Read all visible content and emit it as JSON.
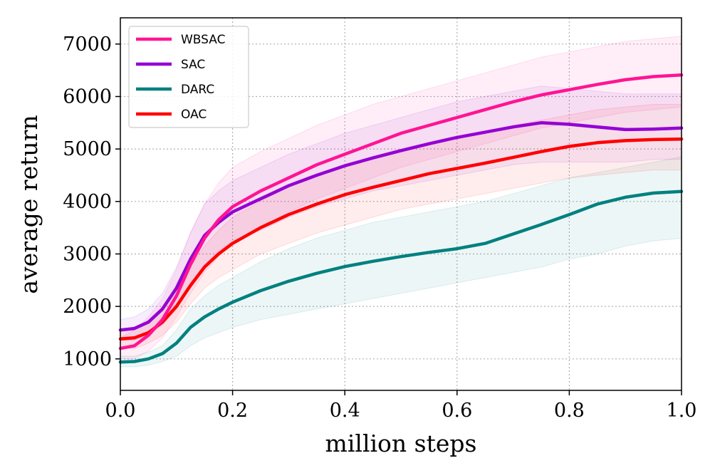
{
  "chart_data": {
    "type": "line",
    "title": "",
    "xlabel": "million steps",
    "ylabel": "average return",
    "xlim": [
      0.0,
      1.0
    ],
    "ylim": [
      400,
      7500
    ],
    "x_ticks": [
      "0.0",
      "0.2",
      "0.4",
      "0.6",
      "0.8",
      "1.0"
    ],
    "y_ticks": [
      "1000",
      "2000",
      "3000",
      "4000",
      "5000",
      "6000",
      "7000"
    ],
    "grid": true,
    "legend_position": "top-left",
    "x": [
      0.0,
      0.025,
      0.05,
      0.075,
      0.1,
      0.125,
      0.15,
      0.175,
      0.2,
      0.25,
      0.3,
      0.35,
      0.4,
      0.45,
      0.5,
      0.55,
      0.6,
      0.65,
      0.7,
      0.75,
      0.8,
      0.85,
      0.9,
      0.95,
      1.0
    ],
    "series": [
      {
        "name": "WBSAC",
        "color": "#ff1493",
        "values": [
          1200,
          1250,
          1450,
          1750,
          2200,
          2800,
          3300,
          3650,
          3900,
          4200,
          4450,
          4700,
          4900,
          5100,
          5300,
          5450,
          5600,
          5750,
          5900,
          6030,
          6130,
          6230,
          6320,
          6380,
          6410
        ],
        "lower": [
          1000,
          1000,
          1150,
          1400,
          1800,
          2250,
          2650,
          2950,
          3200,
          3500,
          3800,
          4050,
          4250,
          4450,
          4650,
          4800,
          4950,
          5100,
          5250,
          5400,
          5500,
          5600,
          5700,
          5750,
          5800
        ],
        "upper": [
          1400,
          1550,
          1800,
          2150,
          2700,
          3400,
          3950,
          4350,
          4650,
          4950,
          5200,
          5450,
          5650,
          5850,
          6000,
          6150,
          6300,
          6450,
          6600,
          6750,
          6850,
          6950,
          7050,
          7100,
          7150
        ]
      },
      {
        "name": "SAC",
        "color": "#9400d3",
        "values": [
          1550,
          1580,
          1700,
          1950,
          2350,
          2900,
          3350,
          3600,
          3800,
          4050,
          4300,
          4500,
          4680,
          4830,
          4970,
          5100,
          5220,
          5320,
          5420,
          5500,
          5470,
          5420,
          5370,
          5380,
          5400
        ],
        "lower": [
          1350,
          1350,
          1450,
          1650,
          1950,
          2400,
          2800,
          3050,
          3250,
          3450,
          3700,
          3900,
          4050,
          4200,
          4300,
          4400,
          4500,
          4600,
          4700,
          4750,
          4750,
          4750,
          4750,
          4800,
          4800
        ],
        "upper": [
          1750,
          1800,
          1950,
          2250,
          2750,
          3400,
          3950,
          4200,
          4400,
          4650,
          4900,
          5100,
          5300,
          5450,
          5600,
          5750,
          5900,
          6000,
          6100,
          6200,
          6150,
          6100,
          6050,
          6050,
          6050
        ]
      },
      {
        "name": "DARC",
        "color": "#008080",
        "values": [
          940,
          950,
          1000,
          1100,
          1300,
          1600,
          1800,
          1950,
          2080,
          2300,
          2480,
          2630,
          2760,
          2860,
          2950,
          3030,
          3100,
          3200,
          3380,
          3560,
          3750,
          3950,
          4080,
          4160,
          4190
        ],
        "lower": [
          850,
          850,
          880,
          950,
          1050,
          1250,
          1400,
          1500,
          1600,
          1750,
          1850,
          1950,
          2050,
          2150,
          2250,
          2350,
          2450,
          2550,
          2650,
          2750,
          2900,
          3000,
          3150,
          3250,
          3300
        ],
        "upper": [
          1050,
          1050,
          1130,
          1250,
          1550,
          1950,
          2200,
          2400,
          2550,
          2850,
          3100,
          3300,
          3450,
          3600,
          3700,
          3800,
          3900,
          4000,
          4150,
          4300,
          4450,
          4550,
          4650,
          4750,
          4850
        ]
      },
      {
        "name": "OAC",
        "color": "#ff0000",
        "values": [
          1380,
          1400,
          1500,
          1700,
          2000,
          2400,
          2750,
          3000,
          3200,
          3500,
          3750,
          3950,
          4130,
          4270,
          4400,
          4530,
          4630,
          4730,
          4840,
          4950,
          5050,
          5120,
          5160,
          5180,
          5190
        ],
        "lower": [
          1200,
          1200,
          1300,
          1450,
          1700,
          2050,
          2350,
          2550,
          2700,
          3000,
          3200,
          3400,
          3550,
          3700,
          3850,
          3950,
          4050,
          4150,
          4250,
          4350,
          4450,
          4500,
          4550,
          4600,
          4600
        ],
        "upper": [
          1550,
          1600,
          1700,
          1950,
          2300,
          2750,
          3150,
          3450,
          3700,
          4000,
          4300,
          4500,
          4700,
          4850,
          4950,
          5100,
          5200,
          5300,
          5450,
          5550,
          5650,
          5750,
          5800,
          5850,
          5850
        ]
      }
    ]
  }
}
